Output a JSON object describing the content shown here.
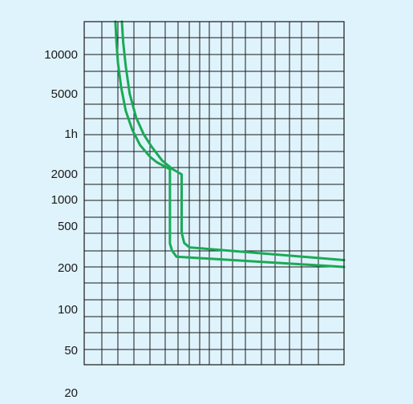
{
  "chart_data": {
    "type": "line",
    "title": "",
    "xlabel": "",
    "ylabel": "",
    "y_tick_labels": [
      "10000",
      "5000",
      "1h",
      "2000",
      "1000",
      "500",
      "200",
      "100",
      "50",
      "20"
    ],
    "grid": true,
    "series": [
      {
        "color": "#1aaa55",
        "points": [
          [
            0.145,
            0
          ],
          [
            0.15,
            0.06
          ],
          [
            0.16,
            0.13
          ],
          [
            0.175,
            0.21
          ],
          [
            0.2,
            0.28
          ],
          [
            0.23,
            0.33
          ],
          [
            0.26,
            0.365
          ],
          [
            0.3,
            0.405
          ],
          [
            0.34,
            0.43
          ],
          [
            0.375,
            0.445
          ],
          [
            0.375,
            0.615
          ],
          [
            0.385,
            0.645
          ],
          [
            0.405,
            0.658
          ],
          [
            1.0,
            0.695
          ]
        ]
      },
      {
        "color": "#1aaa55",
        "points": [
          [
            0.12,
            0
          ],
          [
            0.124,
            0.06
          ],
          [
            0.13,
            0.12
          ],
          [
            0.142,
            0.19
          ],
          [
            0.16,
            0.26
          ],
          [
            0.185,
            0.315
          ],
          [
            0.215,
            0.36
          ],
          [
            0.255,
            0.395
          ],
          [
            0.28,
            0.41
          ],
          [
            0.33,
            0.43
          ],
          [
            0.33,
            0.647
          ],
          [
            0.338,
            0.667
          ],
          [
            0.355,
            0.685
          ],
          [
            1.0,
            0.715
          ]
        ]
      }
    ]
  }
}
